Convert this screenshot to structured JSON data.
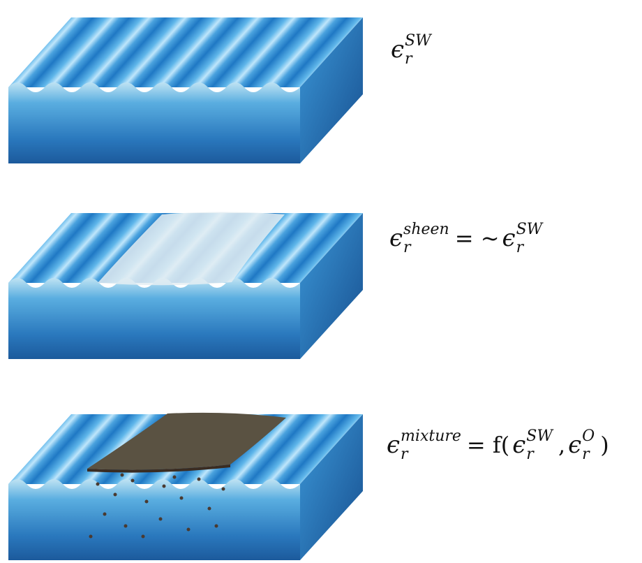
{
  "panels": [
    {
      "label": [
        {
          "base": "ϵ",
          "sub": "r",
          "sup": "SW"
        }
      ]
    },
    {
      "label": [
        {
          "base": "ϵ",
          "sub": "r",
          "sup": "sheen"
        },
        "= ~",
        {
          "base": "ϵ",
          "sub": "r",
          "sup": "SW"
        }
      ]
    },
    {
      "label": [
        {
          "base": "ϵ",
          "sub": "r",
          "sup": "mixture"
        },
        "= f(",
        {
          "base": "ϵ",
          "sub": "r",
          "sup": "SW"
        },
        ",",
        {
          "base": "ϵ",
          "sub": "r",
          "sup": "O"
        },
        ")"
      ]
    }
  ]
}
